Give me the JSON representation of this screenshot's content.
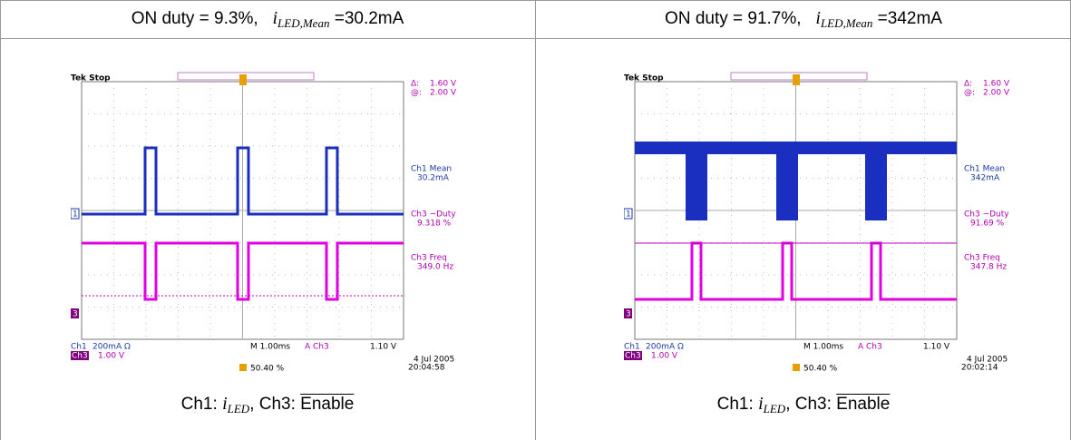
{
  "table": {
    "columns": [
      {
        "header": {
          "label": "ON duty = 9.3%,",
          "symbol": "i",
          "subscript": "LED,Mean",
          "value": "=30.2mA"
        },
        "scope": {
          "status": "Tek Stop",
          "delta": "Δ:",
          "delta_value": "1.60 V",
          "at": "@:",
          "at_value": "2.00 V",
          "mean_label": "Ch1 Mean",
          "mean_value": "30.2mA",
          "duty_label": "Ch3 −Duty",
          "duty_value": "9.318 %",
          "freq_label": "Ch3 Freq",
          "freq_value": "349.0 Hz",
          "ch1_label": "Ch1",
          "ch1_scale": "200mA Ω",
          "ch3_label": "Ch3",
          "ch3_scale": "1.00 V",
          "timebase": "M 1.00ms",
          "trigger": "A  Ch3",
          "trigger_level": "1.10 V",
          "date": "4 Jul  2005",
          "time": "20:04:58",
          "position": "50.40 %",
          "ch1_marker": "1",
          "ch3_marker": "3"
        },
        "caption": {
          "ch1": "Ch1:",
          "symbol": "i",
          "subscript": "LED",
          "ch3": ", Ch3:",
          "signal": "Enable"
        }
      },
      {
        "header": {
          "label": "ON duty = 91.7%,",
          "symbol": "i",
          "subscript": "LED,Mean",
          "value": "=342mA"
        },
        "scope": {
          "status": "Tek Stop",
          "delta": "Δ:",
          "delta_value": "1.60 V",
          "at": "@:",
          "at_value": "2.00 V",
          "mean_label": "Ch1 Mean",
          "mean_value": "342mA",
          "duty_label": "Ch3 −Duty",
          "duty_value": "91.69 %",
          "freq_label": "Ch3 Freq",
          "freq_value": "347.8 Hz",
          "ch1_label": "Ch1",
          "ch1_scale": "200mA Ω",
          "ch3_label": "Ch3",
          "ch3_scale": "1.00 V",
          "timebase": "M 1.00ms",
          "trigger": "A  Ch3",
          "trigger_level": "1.10 V",
          "date": "4 Jul  2005",
          "time": "20:02:14",
          "position": "50.40 %",
          "ch1_marker": "1",
          "ch3_marker": "3"
        },
        "caption": {
          "ch1": "Ch1:",
          "symbol": "i",
          "subscript": "LED",
          "ch3": ", Ch3:",
          "signal": "Enable"
        }
      }
    ]
  }
}
